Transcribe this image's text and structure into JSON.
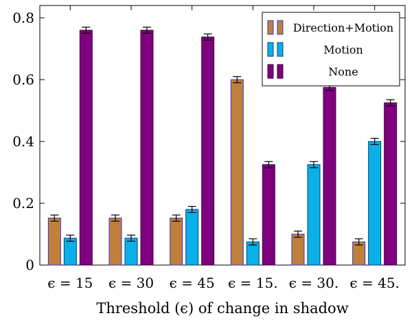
{
  "chart_data": {
    "type": "bar",
    "categories": [
      "ϵ = 15",
      "ϵ = 30",
      "ϵ = 45",
      "ϵ = 15.",
      "ϵ = 30.",
      "ϵ = 45."
    ],
    "series": [
      {
        "name": "Direction+Motion",
        "values": [
          0.152,
          0.152,
          0.152,
          0.6,
          0.1,
          0.075
        ],
        "errors": [
          0.01,
          0.01,
          0.01,
          0.01,
          0.01,
          0.01
        ],
        "color": "#c0803c",
        "edge": "#3333cc"
      },
      {
        "name": "Motion",
        "values": [
          0.087,
          0.087,
          0.18,
          0.075,
          0.325,
          0.4
        ],
        "errors": [
          0.01,
          0.01,
          0.01,
          0.01,
          0.01,
          0.01
        ],
        "color": "#0ab0e8",
        "edge": "#0a3a7a"
      },
      {
        "name": "None",
        "values": [
          0.76,
          0.76,
          0.738,
          0.325,
          0.575,
          0.525
        ],
        "errors": [
          0.01,
          0.01,
          0.01,
          0.01,
          0.01,
          0.01
        ],
        "color": "#7f007f",
        "edge": "#3a003a"
      }
    ],
    "xlabel": "Threshold (ϵ) of change in shadow",
    "ylabel": "",
    "title": "",
    "ylim": [
      0,
      0.84
    ],
    "yticks": [
      0,
      0.2,
      0.4,
      0.6,
      0.8
    ],
    "ytick_labels": [
      "0",
      "0.2",
      "0.4",
      "0.6",
      "0.8"
    ],
    "legend_position": "top-right",
    "grid": false
  }
}
